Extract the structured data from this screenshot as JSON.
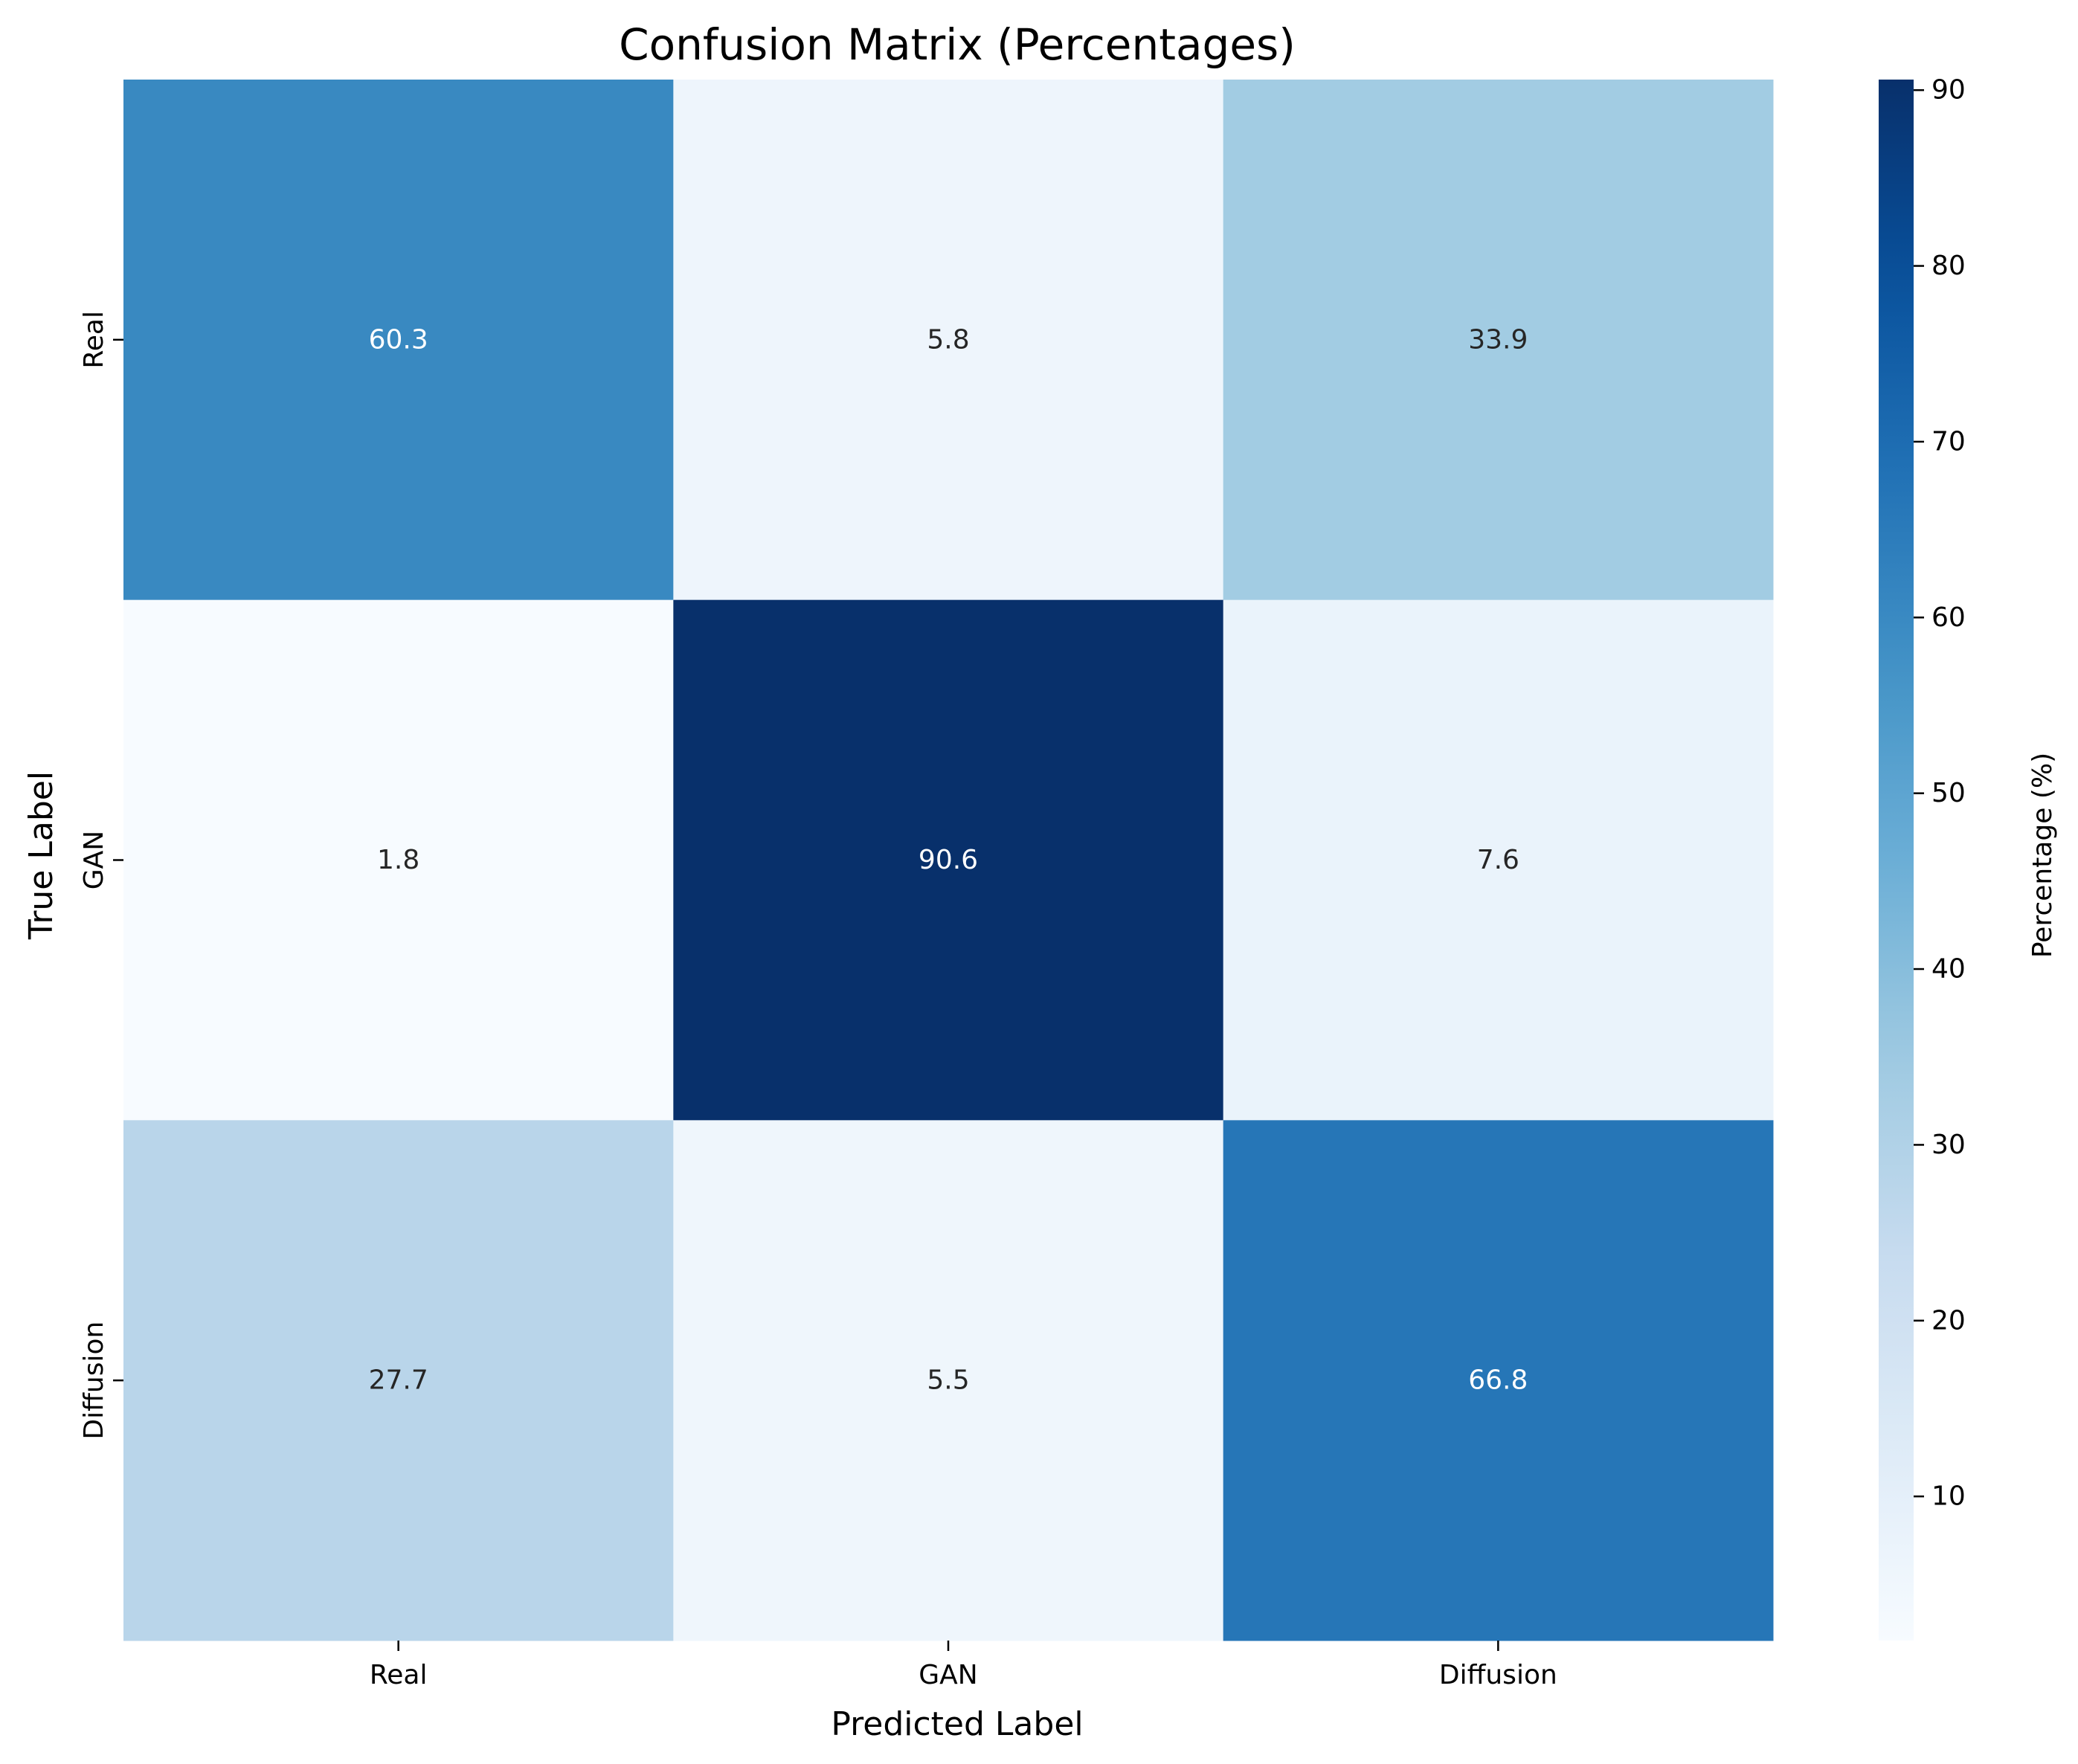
{
  "chart_data": {
    "type": "heatmap",
    "title": "Confusion Matrix (Percentages)",
    "xlabel": "Predicted Label",
    "ylabel": "True Label",
    "x_categories": [
      "Real",
      "GAN",
      "Diffusion"
    ],
    "y_categories": [
      "Real",
      "GAN",
      "Diffusion"
    ],
    "values": [
      [
        60.3,
        5.8,
        33.9
      ],
      [
        1.8,
        90.6,
        7.6
      ],
      [
        27.7,
        5.5,
        66.8
      ]
    ],
    "value_labels": [
      [
        "60.3",
        "5.8",
        "33.9"
      ],
      [
        "1.8",
        "90.6",
        "7.6"
      ],
      [
        "27.7",
        "5.5",
        "66.8"
      ]
    ],
    "colormap": "Blues",
    "colorbar": {
      "label": "Percentage (%)",
      "range": [
        1.8,
        90.6
      ],
      "ticks": [
        10,
        20,
        30,
        40,
        50,
        60,
        70,
        80,
        90
      ],
      "tick_labels": [
        "10",
        "20",
        "30",
        "40",
        "50",
        "60",
        "70",
        "80",
        "90"
      ]
    },
    "grid": false,
    "legend": "none"
  }
}
